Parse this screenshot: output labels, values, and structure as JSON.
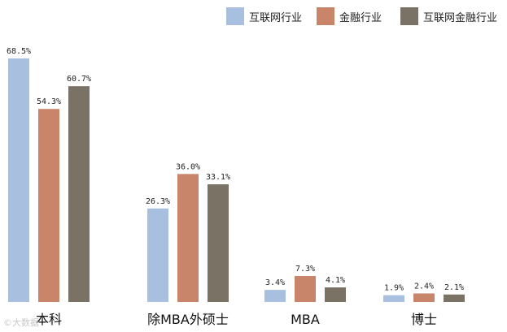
{
  "chart_data": {
    "type": "bar",
    "title": "",
    "xlabel": "",
    "ylabel": "",
    "ylim": [
      0,
      75
    ],
    "grid": false,
    "legend_position": "top-right",
    "categories": [
      "本科",
      "除MBA外硕士",
      "MBA",
      "博士"
    ],
    "series": [
      {
        "name": "互联网行业",
        "color": "#a9bfdf",
        "values": [
          68.5,
          26.3,
          3.4,
          1.9
        ],
        "labels": [
          "68.5%",
          "26.3%",
          "3.4%",
          "1.9%"
        ]
      },
      {
        "name": "金融行业",
        "color": "#c9856a",
        "values": [
          54.3,
          36.0,
          7.3,
          2.4
        ],
        "labels": [
          "54.3%",
          "36.0%",
          "7.3%",
          "2.4%"
        ]
      },
      {
        "name": "互联网金融行业",
        "color": "#7b7266",
        "values": [
          60.7,
          33.1,
          4.1,
          2.1
        ],
        "labels": [
          "60.7%",
          "33.1%",
          "4.1%",
          "2.1%"
        ]
      }
    ]
  },
  "watermark": "©大数据"
}
